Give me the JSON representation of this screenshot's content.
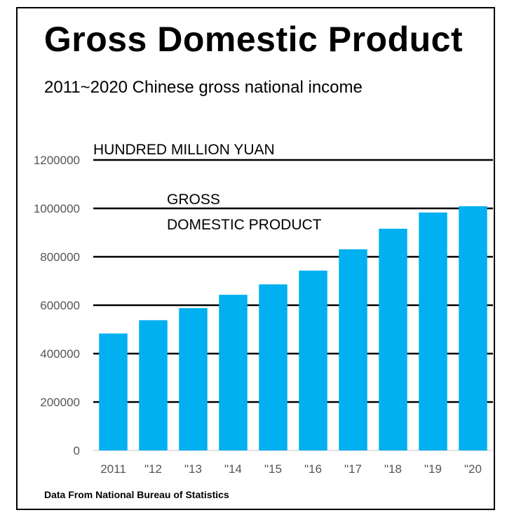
{
  "title": "Gross Domestic Product",
  "subtitle": "2011~2020 Chinese gross national income",
  "footer": "Data From National Bureau of Statistics",
  "chart_data": {
    "type": "bar",
    "categories": [
      "2011",
      "\"12",
      "\"13",
      "\"14",
      "\"15",
      "\"16",
      "\"17",
      "\"18",
      "\"19",
      "\"20"
    ],
    "series": [
      {
        "values": [
          483000,
          538000,
          588000,
          643000,
          686000,
          743000,
          831000,
          916000,
          983000,
          1009000
        ]
      }
    ],
    "y_ticks": [
      "0",
      "200000",
      "400000",
      "600000",
      "800000",
      "1000000",
      "1200000"
    ],
    "ylim": [
      0,
      1200000
    ],
    "ylabel": "HUNDRED  MILLION YUAN",
    "series_label_lines": [
      "GROSS",
      "DOMESTIC PRODUCT"
    ],
    "grid": true,
    "colors": {
      "bar": "#00b0f0",
      "grid": "#000000"
    }
  }
}
